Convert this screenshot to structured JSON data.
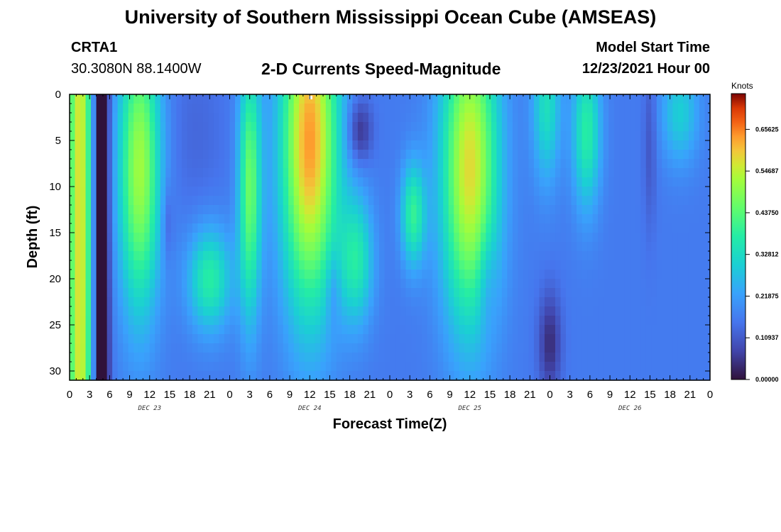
{
  "page": {
    "title_top": "University of Southern Mississippi Ocean Cube (AMSEAS)",
    "title_bottom": "University of Southern Mississippi Ocean Cube (AMSEAS)",
    "station_id": "CRTA1",
    "coordinates": "30.3080N  88.1400W",
    "plot_title": "2-D Currents Speed-Magnitude",
    "model_start_label": "Model Start Time",
    "model_start_value": "12/23/2021 Hour 00"
  },
  "chart_data": {
    "type": "heatmap",
    "xlabel": "Forecast Time(Z)",
    "ylabel": "Depth (ft)",
    "x_tick_labels": [
      "0",
      "3",
      "6",
      "9",
      "12",
      "15",
      "18",
      "21",
      "0",
      "3",
      "6",
      "9",
      "12",
      "15",
      "18",
      "21",
      "0",
      "3",
      "6",
      "9",
      "12",
      "15",
      "18",
      "21",
      "0",
      "3",
      "6",
      "9",
      "12",
      "15",
      "18",
      "21",
      "0"
    ],
    "x_range_hours": [
      0,
      96
    ],
    "day_labels": [
      {
        "label": "DEC 23",
        "hour": 12
      },
      {
        "label": "DEC 24",
        "hour": 36
      },
      {
        "label": "DEC 25",
        "hour": 60
      },
      {
        "label": "DEC 26",
        "hour": 84
      }
    ],
    "y_ticks": [
      0,
      5,
      10,
      15,
      20,
      25,
      30
    ],
    "y_range": [
      0,
      31
    ],
    "y_inverted": true,
    "colorbar": {
      "units": "Knots",
      "range": [
        0,
        0.75
      ],
      "tick_values": [
        0.0,
        0.109375,
        0.21875,
        0.328125,
        0.4375,
        0.546875,
        0.65625
      ],
      "tick_labels": [
        "0.00000",
        "0.10937",
        "0.21875",
        "0.32812",
        "0.43750",
        "0.54687",
        "0.65625"
      ]
    },
    "features": [
      {
        "t": 1.5,
        "z": 15,
        "sigma_t": 1.3,
        "sigma_z": 60,
        "value": 0.42
      },
      {
        "t": 4.8,
        "z": 15,
        "sigma_t": 0.8,
        "sigma_z": 60,
        "value": -0.26
      },
      {
        "t": 10.5,
        "z": 8,
        "sigma_t": 2.2,
        "sigma_z": 11,
        "value": 0.36
      },
      {
        "t": 14.7,
        "z": 14,
        "sigma_t": 0.6,
        "sigma_z": 3,
        "value": -0.06
      },
      {
        "t": 21,
        "z": 20,
        "sigma_t": 2.3,
        "sigma_z": 4,
        "value": 0.22
      },
      {
        "t": 19,
        "z": 4,
        "sigma_t": 3,
        "sigma_z": 7,
        "value": -0.03
      },
      {
        "t": 27,
        "z": 10,
        "sigma_t": 1.2,
        "sigma_z": 10,
        "value": 0.3
      },
      {
        "t": 36,
        "z": 5,
        "sigma_t": 3,
        "sigma_z": 13,
        "value": 0.48
      },
      {
        "t": 39.5,
        "z": 21,
        "sigma_t": 0.7,
        "sigma_z": 3,
        "value": -0.06
      },
      {
        "t": 43,
        "z": 18,
        "sigma_t": 1.8,
        "sigma_z": 5,
        "value": 0.2
      },
      {
        "t": 43.5,
        "z": 4,
        "sigma_t": 1.3,
        "sigma_z": 2.5,
        "value": -0.12
      },
      {
        "t": 51.5,
        "z": 13,
        "sigma_t": 1.3,
        "sigma_z": 4,
        "value": 0.23
      },
      {
        "t": 60,
        "z": 8,
        "sigma_t": 3,
        "sigma_z": 12,
        "value": 0.42
      },
      {
        "t": 62.5,
        "z": 20,
        "sigma_t": 1,
        "sigma_z": 4,
        "value": -0.06
      },
      {
        "t": 71.5,
        "z": 1,
        "sigma_t": 1.5,
        "sigma_z": 6,
        "value": 0.18
      },
      {
        "t": 77.5,
        "z": 4,
        "sigma_t": 1.5,
        "sigma_z": 6,
        "value": 0.22
      },
      {
        "t": 72,
        "z": 27,
        "sigma_t": 1.2,
        "sigma_z": 4,
        "value": -0.12
      },
      {
        "t": 87,
        "z": 5,
        "sigma_t": 0.7,
        "sigma_z": 7,
        "value": -0.06
      },
      {
        "t": 91.5,
        "z": 2,
        "sigma_t": 2,
        "sigma_z": 4,
        "value": 0.14
      }
    ]
  }
}
